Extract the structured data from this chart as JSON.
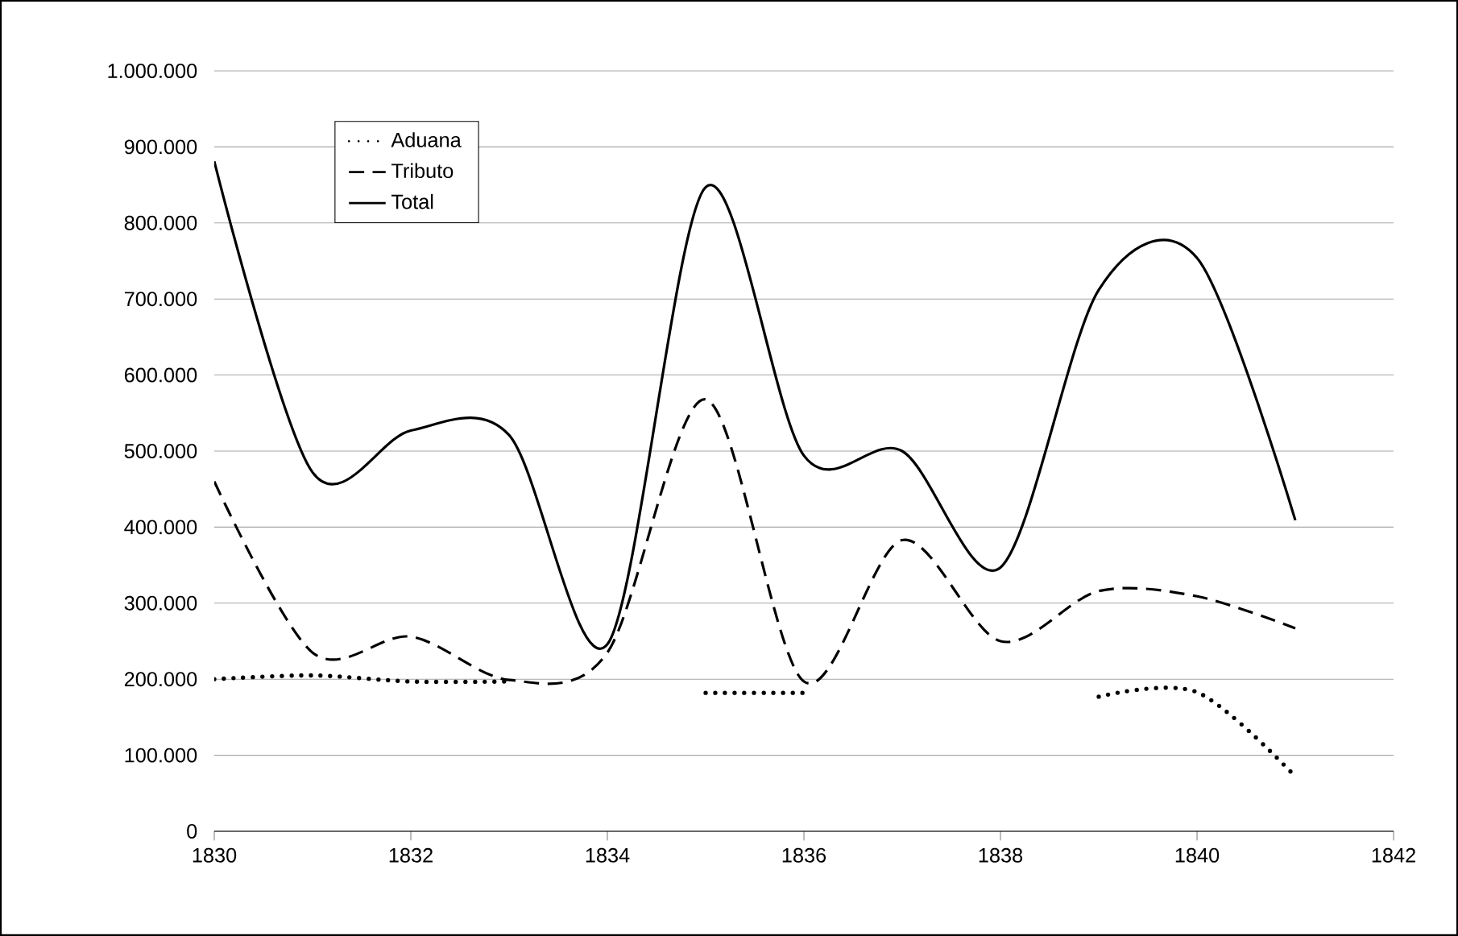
{
  "chart_data": {
    "type": "line",
    "x": [
      1830,
      1831,
      1832,
      1833,
      1834,
      1835,
      1836,
      1837,
      1838,
      1839,
      1840,
      1841
    ],
    "series": [
      {
        "name": "Aduana",
        "color": "#000000",
        "line_style": "dotted",
        "values": [
          200000,
          205000,
          197000,
          197000,
          null,
          182000,
          182000,
          null,
          null,
          177000,
          183000,
          72000
        ]
      },
      {
        "name": "Tributo",
        "color": "#000000",
        "line_style": "dashed",
        "values": [
          460000,
          235000,
          256000,
          199000,
          235000,
          568000,
          197000,
          383000,
          250000,
          316000,
          309000,
          267000
        ]
      },
      {
        "name": "Total",
        "color": "#000000",
        "line_style": "solid",
        "values": [
          881000,
          472000,
          527000,
          521000,
          246000,
          847000,
          494000,
          500000,
          347000,
          712000,
          754000,
          409000
        ]
      }
    ],
    "xlim": [
      1830,
      1842
    ],
    "xticks": [
      1830,
      1832,
      1834,
      1836,
      1838,
      1840,
      1842
    ],
    "ylim": [
      0,
      1000000
    ],
    "yticks": [
      {
        "value": 0,
        "label": "0"
      },
      {
        "value": 100000,
        "label": "100.000"
      },
      {
        "value": 200000,
        "label": "200.000"
      },
      {
        "value": 300000,
        "label": "300.000"
      },
      {
        "value": 400000,
        "label": "400.000"
      },
      {
        "value": 500000,
        "label": "500.000"
      },
      {
        "value": 600000,
        "label": "600.000"
      },
      {
        "value": 700000,
        "label": "700.000"
      },
      {
        "value": 800000,
        "label": "800.000"
      },
      {
        "value": 900000,
        "label": "900.000"
      },
      {
        "value": 1000000,
        "label": "1.000.000"
      }
    ],
    "grid": "y",
    "legend": "top left",
    "marker": "none"
  }
}
